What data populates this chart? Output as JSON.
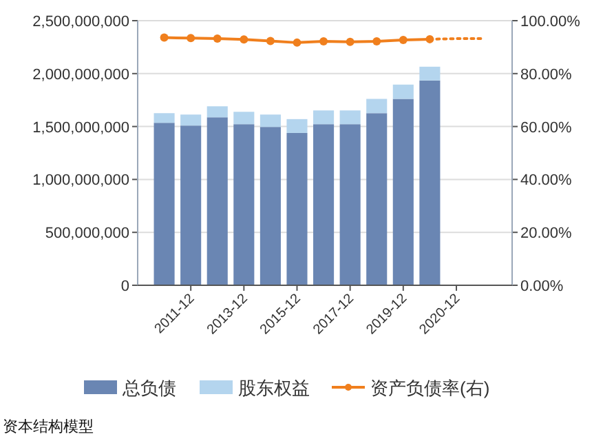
{
  "chart_data": {
    "type": "bar",
    "stacked": true,
    "categories": [
      null,
      "2011-12",
      null,
      "2013-12",
      null,
      "2015-12",
      null,
      "2017-12",
      null,
      "2019-12",
      null,
      "2020-12",
      null
    ],
    "series": [
      {
        "name": "总负债",
        "color": "#6a86b3",
        "values": [
          1535000000,
          1509000000,
          1587000000,
          1522000000,
          1496000000,
          1439000000,
          1522000000,
          1522000000,
          1626000000,
          1761000000,
          1935000000,
          null,
          null
        ]
      },
      {
        "name": "股东权益",
        "color": "#b4d5ee",
        "values": [
          91000000,
          104000000,
          104000000,
          117000000,
          117000000,
          131000000,
          130000000,
          130000000,
          135000000,
          135000000,
          130000000,
          null,
          null
        ]
      },
      {
        "name": "资产负债率(右)",
        "type": "line",
        "axis": "y2",
        "marker": "circle",
        "line_style": "solid",
        "color": "#f07f1d",
        "values": [
          93.6,
          93.4,
          93.2,
          92.9,
          92.3,
          91.7,
          92.2,
          92.0,
          92.2,
          92.7,
          93.0,
          null,
          null
        ]
      },
      {
        "type": "line",
        "axis": "y2",
        "marker": "none",
        "line_style": "dotted",
        "color": "#f07f1d",
        "values": [
          null,
          null,
          null,
          null,
          null,
          null,
          null,
          null,
          null,
          null,
          93.0,
          93.2,
          93.2
        ]
      }
    ],
    "ylim": [
      0,
      2500000000
    ],
    "yticks": [
      {
        "value": 0,
        "label": "0"
      },
      {
        "value": 500000000,
        "label": "500,000,000"
      },
      {
        "value": 1000000000,
        "label": "1,000,000,000"
      },
      {
        "value": 1500000000,
        "label": "1,500,000,000"
      },
      {
        "value": 2000000000,
        "label": "2,000,000,000"
      },
      {
        "value": 2500000000,
        "label": "2,500,000,000"
      }
    ],
    "y2lim": [
      0,
      100
    ],
    "y2ticks": [
      {
        "value": 0,
        "label": "0.00%"
      },
      {
        "value": 20,
        "label": "20.00%"
      },
      {
        "value": 40,
        "label": "40.00%"
      },
      {
        "value": 60,
        "label": "60.00%"
      },
      {
        "value": 80,
        "label": "80.00%"
      },
      {
        "value": 100,
        "label": "100.00%"
      }
    ],
    "grid": "y",
    "legend": "bottom",
    "annotations": [
      "资本结构模型"
    ]
  }
}
